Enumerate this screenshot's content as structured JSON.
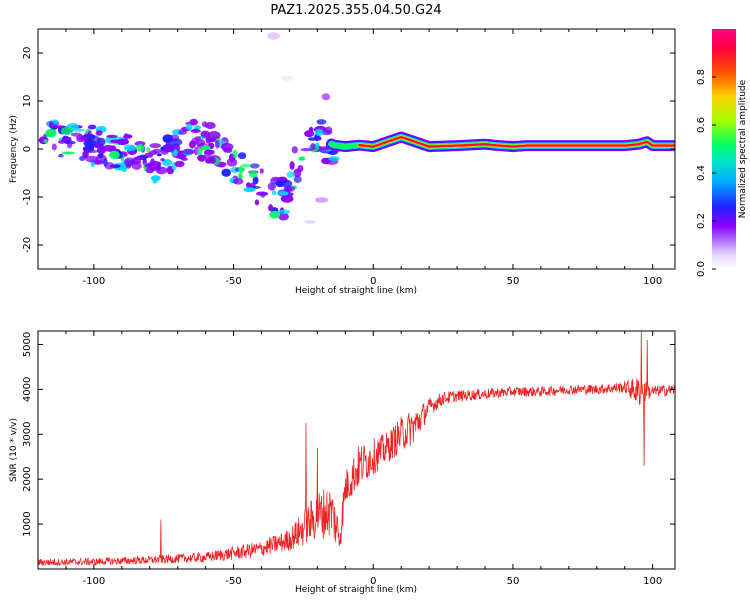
{
  "figure": {
    "title": "PAZ1.2025.355.04.50.G24"
  },
  "chart_data": [
    {
      "type": "heatmap",
      "title": "PAZ1.2025.355.04.50.G24",
      "xlabel": "Height of straight line (km)",
      "ylabel": "Frequency (Hz)",
      "xlim": [
        -120,
        108
      ],
      "ylim": [
        -25,
        25
      ],
      "x_ticks": [
        -100,
        -50,
        0,
        50,
        100
      ],
      "y_ticks": [
        -20,
        -10,
        0,
        10,
        20
      ],
      "colorbar": {
        "label": "Normalized spectral amplitude",
        "range": [
          0,
          1
        ],
        "ticks": [
          0.0,
          0.2,
          0.4,
          0.6,
          0.8
        ],
        "colors": [
          "#ffffff",
          "#cfa6ff",
          "#8a00ff",
          "#2222ff",
          "#00d5ff",
          "#00ff60",
          "#aaff00",
          "#ffd000",
          "#ff5000",
          "#ff0040"
        ]
      },
      "ridge": {
        "description": "dominant frequency ridge (Hz) vs height (km)",
        "x": [
          -120,
          -112,
          -105,
          -100,
          -92,
          -85,
          -78,
          -72,
          -66,
          -60,
          -55,
          -50,
          -45,
          -40,
          -35,
          -32,
          -28,
          -24,
          -20,
          -17,
          -14,
          -10,
          -5,
          0,
          5,
          10,
          15,
          20,
          30,
          40,
          45,
          50,
          55,
          60,
          70,
          80,
          90,
          95,
          98,
          100,
          108
        ],
        "y": [
          2.0,
          2.5,
          1.5,
          0.5,
          -0.5,
          -1.5,
          -3.0,
          -1.0,
          1.5,
          2.0,
          -0.5,
          -3.0,
          -6.0,
          -8.0,
          -10.0,
          -10.5,
          -4.0,
          0.0,
          2.5,
          1.5,
          0.8,
          0.5,
          0.8,
          0.5,
          1.5,
          2.5,
          1.5,
          0.5,
          0.7,
          1.0,
          0.7,
          0.5,
          0.7,
          0.7,
          0.7,
          0.7,
          0.7,
          1.0,
          1.5,
          0.7,
          0.7
        ]
      }
    },
    {
      "type": "line",
      "xlabel": "Height of straight line (km)",
      "ylabel": "SNR (10 * v/v)",
      "xlim": [
        -120,
        108
      ],
      "ylim": [
        0,
        5300
      ],
      "x_ticks": [
        -100,
        -50,
        0,
        50,
        100
      ],
      "y_ticks": [
        1000,
        2000,
        3000,
        4000,
        5000
      ],
      "series": [
        {
          "name": "SNR",
          "color": "#ee2222",
          "envelope_x": [
            -120,
            -100,
            -80,
            -60,
            -50,
            -40,
            -30,
            -25,
            -20,
            -15,
            -12,
            -10,
            -5,
            0,
            5,
            10,
            15,
            20,
            25,
            30,
            40,
            50,
            60,
            70,
            80,
            90,
            95,
            100,
            108
          ],
          "envelope_mean": [
            150,
            160,
            200,
            260,
            350,
            450,
            650,
            900,
            1200,
            1300,
            700,
            1800,
            2300,
            2500,
            2700,
            3000,
            3200,
            3600,
            3800,
            3850,
            3900,
            3950,
            3950,
            4000,
            4000,
            4050,
            3950,
            3950,
            4000
          ],
          "envelope_noise": [
            80,
            80,
            90,
            110,
            150,
            180,
            250,
            400,
            550,
            600,
            400,
            400,
            500,
            400,
            350,
            400,
            400,
            200,
            150,
            130,
            120,
            110,
            110,
            110,
            110,
            130,
            350,
            130,
            130
          ],
          "spikes": [
            {
              "x": -76,
              "y": 1100
            },
            {
              "x": -24,
              "y": 3250
            },
            {
              "x": -20,
              "y": 2700
            },
            {
              "x": 96,
              "y": 5300
            },
            {
              "x": 97,
              "y": 2300
            },
            {
              "x": 98,
              "y": 5100
            }
          ]
        }
      ]
    }
  ]
}
